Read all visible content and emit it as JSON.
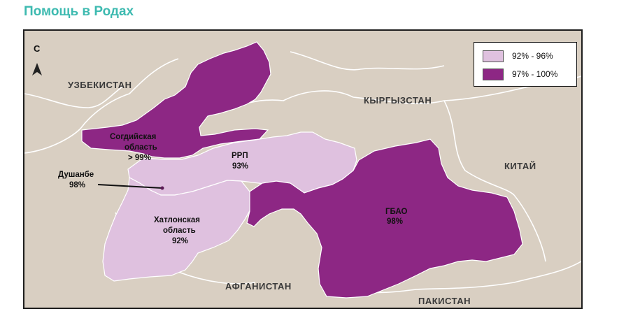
{
  "page": {
    "title": "Помощь в Родах"
  },
  "compass": {
    "letter": "С"
  },
  "legend": {
    "items": [
      {
        "label": "92% - 96%",
        "color": "#dfc1df"
      },
      {
        "label": "97% - 100%",
        "color": "#8d2784"
      }
    ]
  },
  "countries": {
    "uzbekistan": "УЗБЕКИСТАН",
    "kyrgyzstan": "КЫРГЫЗСТАН",
    "china": "КИТАЙ",
    "afghanistan": "АФГАНИСТАН",
    "pakistan": "ПАКИСТАН"
  },
  "regions": {
    "sogd": {
      "line1": "Согдийская",
      "line2": "область",
      "line3": "> 99%",
      "class": "97% - 100%"
    },
    "rrp": {
      "line1": "РРП",
      "line2": "93%",
      "class": "92% - 96%"
    },
    "dushanbe": {
      "line1": "Душанбе",
      "line2": "98%"
    },
    "khatlon": {
      "line1": "Хатлонская",
      "line2": "область",
      "line3": "92%",
      "class": "92% - 96%"
    },
    "gbao": {
      "line1": "ГБАО",
      "line2": "98%",
      "class": "97% - 100%"
    }
  },
  "colors": {
    "background": "#d9cfc2",
    "light_region": "#dfc1df",
    "dark_region": "#8d2784",
    "title": "#3dbab0"
  }
}
